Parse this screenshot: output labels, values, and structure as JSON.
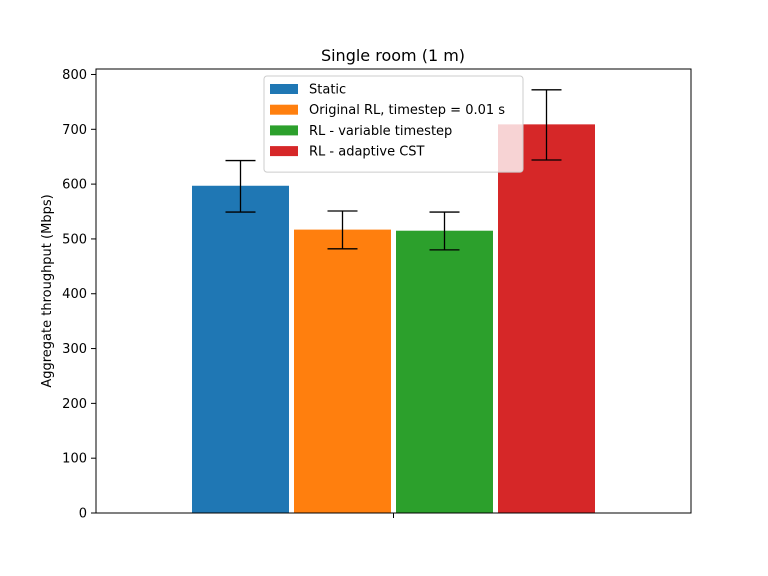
{
  "chart_data": {
    "type": "bar",
    "title": "Single room (1 m)",
    "xlabel": "",
    "ylabel": "Aggregate throughput (Mbps)",
    "ylim": [
      0,
      810
    ],
    "yticks": [
      0,
      100,
      200,
      300,
      400,
      500,
      600,
      700,
      800
    ],
    "grid": false,
    "legend_position": "top-center",
    "series": [
      {
        "name": "Static",
        "value": 597,
        "error_low": 549,
        "error_high": 643,
        "color": "#1f77b4"
      },
      {
        "name": "Original RL, timestep = 0.01 s",
        "value": 517,
        "error_low": 482,
        "error_high": 551,
        "color": "#ff7f0e"
      },
      {
        "name": "RL - variable timestep",
        "value": 515,
        "error_low": 480,
        "error_high": 549,
        "color": "#2ca02c"
      },
      {
        "name": "RL - adaptive CST",
        "value": 709,
        "error_low": 644,
        "error_high": 772,
        "color": "#d62728"
      }
    ]
  }
}
